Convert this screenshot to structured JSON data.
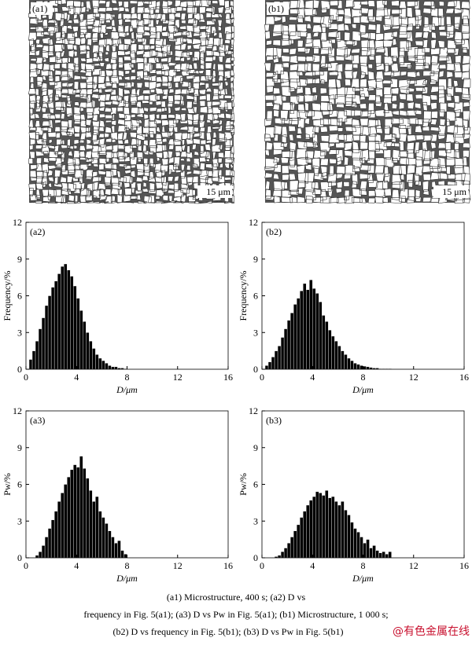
{
  "images": [
    {
      "label": "(a1)",
      "scale_bar": "15 μm"
    },
    {
      "label": "(b1)",
      "scale_bar": "15 μm"
    }
  ],
  "chart_data": [
    {
      "type": "histogram",
      "panel_label": "(a2)",
      "xlabel": "D/μm",
      "ylabel": "Frequency/%",
      "color": "#000000",
      "bins": [
        0.25,
        0.5,
        0.75,
        1.0,
        1.25,
        1.5,
        1.75,
        2.0,
        2.25,
        2.5,
        2.75,
        3.0,
        3.25,
        3.5,
        3.75,
        4.0,
        4.25,
        4.5,
        4.75,
        5.0,
        5.25,
        5.5,
        5.75,
        6.0,
        6.25,
        6.5,
        6.75,
        7.0,
        7.25,
        7.5,
        7.75,
        8.0
      ],
      "values": [
        0.8,
        1.5,
        2.3,
        3.3,
        4.2,
        5.2,
        6.0,
        6.7,
        7.2,
        7.8,
        8.4,
        8.6,
        8.1,
        7.6,
        6.8,
        5.8,
        4.8,
        3.9,
        3.0,
        2.3,
        1.7,
        1.2,
        0.9,
        0.7,
        0.5,
        0.3,
        0.2,
        0.2,
        0.1,
        0.1,
        0.05
      ],
      "xlim": [
        0,
        16
      ],
      "ylim": [
        0,
        12
      ],
      "xticks": [
        0,
        4,
        8,
        12,
        16
      ],
      "yticks": [
        0,
        3,
        6,
        9,
        12
      ]
    },
    {
      "type": "histogram",
      "panel_label": "(b2)",
      "xlabel": "D/μm",
      "ylabel": "Frequency/%",
      "color": "#000000",
      "bins": [
        0.25,
        0.5,
        0.75,
        1.0,
        1.25,
        1.5,
        1.75,
        2.0,
        2.25,
        2.5,
        2.75,
        3.0,
        3.25,
        3.5,
        3.75,
        4.0,
        4.25,
        4.5,
        4.75,
        5.0,
        5.25,
        5.5,
        5.75,
        6.0,
        6.25,
        6.5,
        6.75,
        7.0,
        7.25,
        7.5,
        7.75,
        8.0,
        8.25,
        8.5,
        8.75,
        9.0,
        9.25,
        9.5,
        9.75,
        10.0,
        10.25
      ],
      "values": [
        0.3,
        0.6,
        1.0,
        1.5,
        1.9,
        2.6,
        3.3,
        4.0,
        4.6,
        5.3,
        5.8,
        6.4,
        7.0,
        6.5,
        7.3,
        6.6,
        6.2,
        5.5,
        4.4,
        3.9,
        3.2,
        2.7,
        2.3,
        1.9,
        1.5,
        1.2,
        0.9,
        0.7,
        0.5,
        0.4,
        0.3,
        0.25,
        0.2,
        0.15,
        0.1,
        0.1,
        0.05,
        0.05,
        0.05,
        0.05
      ],
      "xlim": [
        0,
        16
      ],
      "ylim": [
        0,
        12
      ],
      "xticks": [
        0,
        4,
        8,
        12,
        16
      ],
      "yticks": [
        0,
        3,
        6,
        9,
        12
      ]
    },
    {
      "type": "histogram",
      "panel_label": "(a3)",
      "xlabel": "D/μm",
      "ylabel": "Pw/%",
      "color": "#000000",
      "bins": [
        0.75,
        1.0,
        1.25,
        1.5,
        1.75,
        2.0,
        2.25,
        2.5,
        2.75,
        3.0,
        3.25,
        3.5,
        3.75,
        4.0,
        4.25,
        4.5,
        4.75,
        5.0,
        5.25,
        5.5,
        5.75,
        6.0,
        6.25,
        6.5,
        6.75,
        7.0,
        7.25,
        7.5,
        7.75,
        8.0
      ],
      "values": [
        0.2,
        0.5,
        1.0,
        1.7,
        2.4,
        3.1,
        3.8,
        4.6,
        5.3,
        6.0,
        6.6,
        7.2,
        7.6,
        7.4,
        8.3,
        7.3,
        6.5,
        5.5,
        4.6,
        5.0,
        3.8,
        3.3,
        2.8,
        2.2,
        1.7,
        1.2,
        1.4,
        0.6,
        0.3
      ],
      "xlim": [
        0,
        16
      ],
      "ylim": [
        0,
        12
      ],
      "xticks": [
        0,
        4,
        8,
        12,
        16
      ],
      "yticks": [
        0,
        3,
        6,
        9,
        12
      ]
    },
    {
      "type": "histogram",
      "panel_label": "(b3)",
      "xlabel": "D/μm",
      "ylabel": "Pw/%",
      "color": "#000000",
      "bins": [
        1.0,
        1.25,
        1.5,
        1.75,
        2.0,
        2.25,
        2.5,
        2.75,
        3.0,
        3.25,
        3.5,
        3.75,
        4.0,
        4.25,
        4.5,
        4.75,
        5.0,
        5.25,
        5.5,
        5.75,
        6.0,
        6.25,
        6.5,
        6.75,
        7.0,
        7.25,
        7.5,
        7.75,
        8.0,
        8.25,
        8.5,
        8.75,
        9.0,
        9.25,
        9.5,
        9.75,
        10.0,
        10.25
      ],
      "values": [
        0.1,
        0.2,
        0.5,
        0.8,
        1.2,
        1.7,
        2.2,
        2.7,
        3.3,
        3.8,
        4.3,
        4.7,
        5.0,
        5.4,
        5.3,
        5.1,
        5.5,
        4.9,
        5.0,
        4.6,
        4.3,
        4.6,
        3.9,
        3.5,
        2.9,
        2.4,
        2.1,
        1.7,
        1.2,
        1.5,
        0.8,
        1.0,
        0.6,
        0.4,
        0.5,
        0.3,
        0.5
      ],
      "xlim": [
        0,
        16
      ],
      "ylim": [
        0,
        12
      ],
      "xticks": [
        0,
        4,
        8,
        12,
        16
      ],
      "yticks": [
        0,
        3,
        6,
        9,
        12
      ]
    }
  ],
  "caption": [
    "(a1) Microstructure, 400 s; (a2) D vs",
    "frequency in Fig. 5(a1); (a3) D vs Pw in Fig. 5(a1); (b1) Microstructure, 1 000 s;",
    "(b2) D vs frequency in Fig. 5(b1); (b3) D vs Pw in  Fig. 5(b1)"
  ],
  "watermark": "@有色金属在线"
}
